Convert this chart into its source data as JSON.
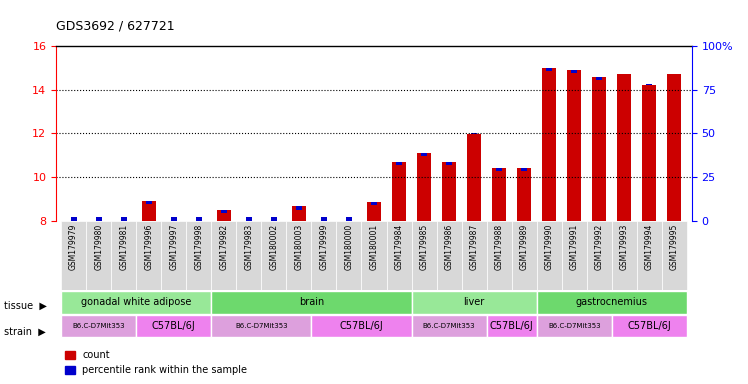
{
  "title": "GDS3692 / 627721",
  "samples": [
    "GSM179979",
    "GSM179980",
    "GSM179981",
    "GSM179996",
    "GSM179997",
    "GSM179998",
    "GSM179982",
    "GSM179983",
    "GSM180002",
    "GSM180003",
    "GSM179999",
    "GSM180000",
    "GSM180001",
    "GSM179984",
    "GSM179985",
    "GSM179986",
    "GSM179987",
    "GSM179988",
    "GSM179989",
    "GSM179990",
    "GSM179991",
    "GSM179992",
    "GSM179993",
    "GSM179994",
    "GSM179995"
  ],
  "count_values": [
    8.0,
    8.0,
    8.0,
    8.9,
    8.0,
    8.0,
    8.5,
    8.0,
    8.0,
    8.65,
    8.0,
    8.0,
    8.85,
    10.7,
    11.1,
    10.7,
    11.95,
    10.4,
    10.4,
    15.0,
    14.9,
    14.6,
    14.7,
    14.2,
    14.7
  ],
  "percentile_values": [
    2,
    2,
    2,
    8,
    2,
    2,
    5,
    2,
    2,
    7,
    2,
    2,
    6,
    26,
    30,
    25,
    50,
    25,
    23,
    85,
    86,
    82,
    84,
    78,
    84
  ],
  "tissues": [
    {
      "label": "gonadal white adipose",
      "start": 0,
      "end": 6,
      "color": "#98E898"
    },
    {
      "label": "brain",
      "start": 6,
      "end": 14,
      "color": "#7EDD7E"
    },
    {
      "label": "liver",
      "start": 14,
      "end": 19,
      "color": "#5FCD5F"
    },
    {
      "label": "gastrocnemius",
      "start": 19,
      "end": 25,
      "color": "#4FBF4F"
    }
  ],
  "strains": [
    {
      "label": "B6.C-D7Mit353",
      "start": 0,
      "end": 3,
      "color": "#DDA0DD"
    },
    {
      "label": "C57BL/6J",
      "start": 3,
      "end": 6,
      "color": "#EE82EE"
    },
    {
      "label": "B6.C-D7Mit353",
      "start": 6,
      "end": 10,
      "color": "#DDA0DD"
    },
    {
      "label": "C57BL/6J",
      "start": 10,
      "end": 14,
      "color": "#EE82EE"
    },
    {
      "label": "B6.C-D7Mit353",
      "start": 14,
      "end": 17,
      "color": "#DDA0DD"
    },
    {
      "label": "C57BL/6J",
      "start": 17,
      "end": 19,
      "color": "#EE82EE"
    },
    {
      "label": "B6.C-D7Mit353",
      "start": 19,
      "end": 22,
      "color": "#DDA0DD"
    },
    {
      "label": "C57BL/6J",
      "start": 22,
      "end": 25,
      "color": "#EE82EE"
    }
  ],
  "ylim_left": [
    8,
    16
  ],
  "ylim_right": [
    0,
    100
  ],
  "yticks_left": [
    8,
    10,
    12,
    14,
    16
  ],
  "yticks_right": [
    0,
    25,
    50,
    75,
    100
  ],
  "bar_color_red": "#CC0000",
  "bar_color_blue": "#0000CC",
  "xticklabel_bg": "#D8D8D8"
}
